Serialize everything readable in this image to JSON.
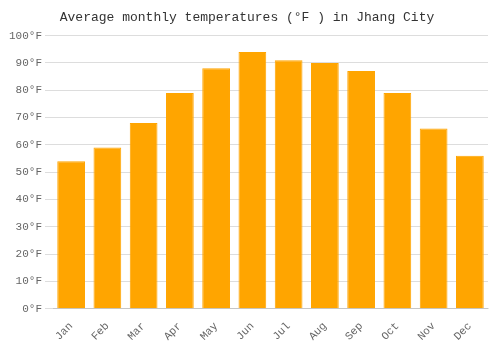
{
  "chart_data": {
    "type": "bar",
    "title": "Average monthly temperatures (°F ) in Jhang City",
    "categories": [
      "Jan",
      "Feb",
      "Mar",
      "Apr",
      "May",
      "Jun",
      "Jul",
      "Aug",
      "Sep",
      "Oct",
      "Nov",
      "Dec"
    ],
    "values": [
      54,
      59,
      68,
      79,
      88,
      94,
      91,
      90,
      87,
      79,
      66,
      56
    ],
    "color": "#FFA500",
    "ylim": [
      0,
      100
    ],
    "yticks": [
      {
        "value": 0,
        "label": "0°F"
      },
      {
        "value": 10,
        "label": "10°F"
      },
      {
        "value": 20,
        "label": "20°F"
      },
      {
        "value": 30,
        "label": "30°F"
      },
      {
        "value": 40,
        "label": "40°F"
      },
      {
        "value": 50,
        "label": "50°F"
      },
      {
        "value": 60,
        "label": "60°F"
      },
      {
        "value": 70,
        "label": "70°F"
      },
      {
        "value": 80,
        "label": "80°F"
      },
      {
        "value": 90,
        "label": "90°F"
      },
      {
        "value": 100,
        "label": "100°F"
      }
    ],
    "grid": true
  }
}
